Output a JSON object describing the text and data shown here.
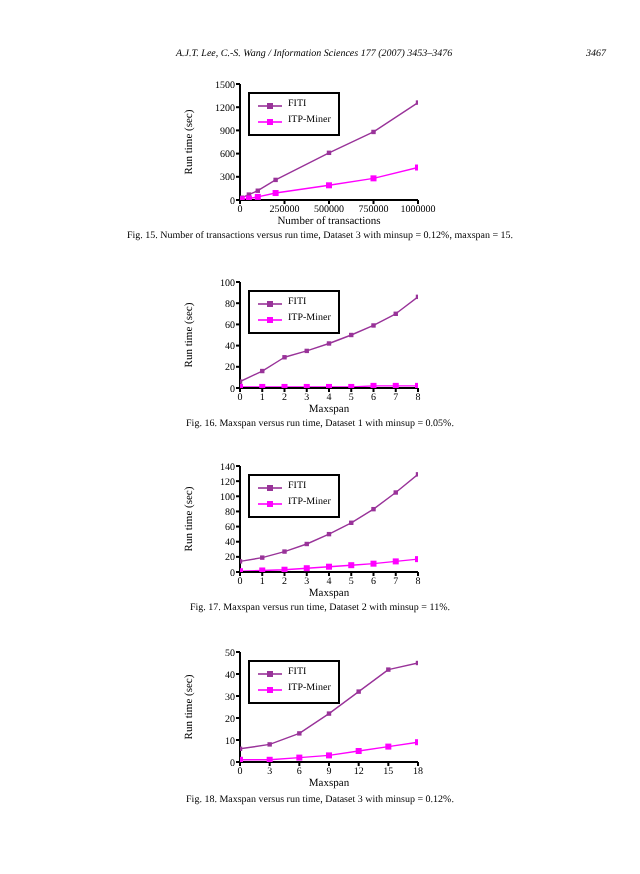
{
  "chart_data": [
    {
      "type": "line",
      "title": "Fig. 15. Number of transactions versus run time, Dataset 3 with minsup = 0.12%, maxspan = 15.",
      "annotations": [
        "A.J.T. Lee, C.-S. Wang / Information Sciences 177 (2007) 3453–3476",
        "3467"
      ],
      "xlabel": "Number of transactions",
      "ylabel": "Run time (sec)",
      "x": [
        10000,
        50000,
        100000,
        200000,
        500000,
        750000,
        1000000
      ],
      "series": [
        {
          "name": "FITI",
          "color": "#993399",
          "values": [
            30,
            70,
            120,
            260,
            610,
            880,
            1260
          ]
        },
        {
          "name": "ITP-Miner",
          "color": "#ff00ff",
          "values": [
            10,
            20,
            40,
            90,
            190,
            280,
            420
          ]
        }
      ],
      "xlim": [
        0,
        1000000
      ],
      "xticks": [
        0,
        250000,
        500000,
        750000,
        1000000
      ],
      "ylim": [
        0,
        1500
      ],
      "yticks": [
        0,
        300,
        600,
        900,
        1200,
        1500
      ],
      "legend": "top left",
      "marker": "square",
      "grid": false
    },
    {
      "type": "line",
      "title": "Fig. 16. Maxspan versus run time, Dataset 1 with minsup = 0.05%.",
      "xlabel": "Maxspan",
      "ylabel": "Run time (sec)",
      "x": [
        0,
        1,
        2,
        3,
        4,
        5,
        6,
        7,
        8
      ],
      "series": [
        {
          "name": "FITI",
          "color": "#993399",
          "values": [
            6,
            16,
            29,
            35,
            42,
            50,
            59,
            70,
            86
          ]
        },
        {
          "name": "ITP-Miner",
          "color": "#ff00ff",
          "values": [
            1,
            1,
            1,
            1,
            1,
            1,
            2,
            2,
            2
          ]
        }
      ],
      "xlim": [
        0,
        8
      ],
      "xticks": [
        0,
        1,
        2,
        3,
        4,
        5,
        6,
        7,
        8
      ],
      "ylim": [
        0,
        100
      ],
      "yticks": [
        0,
        20,
        40,
        60,
        80,
        100
      ],
      "legend": "top left",
      "marker": "square",
      "grid": false
    },
    {
      "type": "line",
      "title": "Fig. 17. Maxspan versus run time, Dataset 2 with minsup = 11%.",
      "xlabel": "Maxspan",
      "ylabel": "Run time (sec)",
      "x": [
        0,
        1,
        2,
        3,
        4,
        5,
        6,
        7,
        8
      ],
      "series": [
        {
          "name": "FITI",
          "color": "#993399",
          "values": [
            14,
            19,
            27,
            37,
            50,
            65,
            83,
            105,
            129
          ]
        },
        {
          "name": "ITP-Miner",
          "color": "#ff00ff",
          "values": [
            1,
            2,
            3,
            5,
            7,
            9,
            11,
            14,
            17
          ]
        }
      ],
      "xlim": [
        0,
        8
      ],
      "xticks": [
        0,
        1,
        2,
        3,
        4,
        5,
        6,
        7,
        8
      ],
      "ylim": [
        0,
        140
      ],
      "yticks": [
        0,
        20,
        40,
        60,
        80,
        100,
        120,
        140
      ],
      "legend": "top left",
      "marker": "square",
      "grid": false
    },
    {
      "type": "line",
      "title": "Fig. 18. Maxspan versus run time, Dataset 3 with minsup = 0.12%.",
      "xlabel": "Maxspan",
      "ylabel": "Run time (sec)",
      "x": [
        0,
        3,
        6,
        9,
        12,
        15,
        18
      ],
      "series": [
        {
          "name": "FITI",
          "color": "#993399",
          "values": [
            6,
            8,
            13,
            22,
            32,
            42,
            45
          ]
        },
        {
          "name": "ITP-Miner",
          "color": "#ff00ff",
          "values": [
            1,
            1,
            2,
            3,
            5,
            7,
            9
          ]
        }
      ],
      "xlim": [
        0,
        18
      ],
      "xticks": [
        0,
        3,
        6,
        9,
        12,
        15,
        18
      ],
      "ylim": [
        0,
        50
      ],
      "yticks": [
        0,
        10,
        20,
        30,
        40,
        50
      ],
      "legend": "top left",
      "marker": "square",
      "grid": false
    }
  ]
}
